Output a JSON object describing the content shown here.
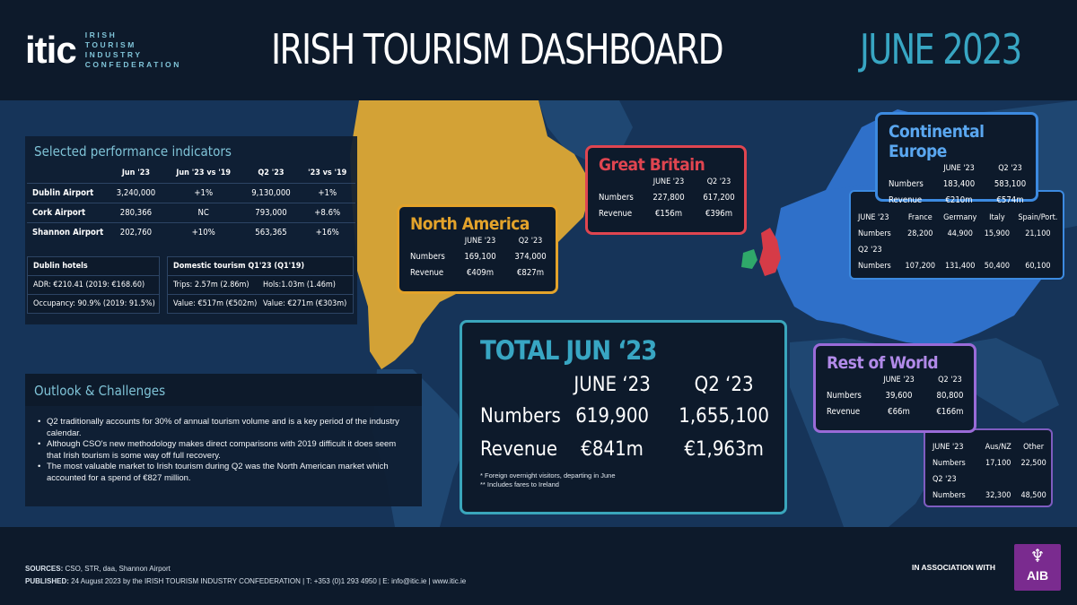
{
  "header": {
    "logo_mark": "itic",
    "logo_lines": [
      "IRISH",
      "TOURISM",
      "INDUSTRY",
      "CONFEDERATION"
    ],
    "title": "IRISH TOURISM DASHBOARD",
    "period": "JUNE 2023"
  },
  "performance": {
    "title": "Selected performance indicators",
    "columns": [
      "",
      "Jun '23",
      "Jun '23 vs '19",
      "Q2 '23",
      "'23 vs '19"
    ],
    "rows": [
      [
        "Dublin Airport",
        "3,240,000",
        "+1%",
        "9,130,000",
        "+1%"
      ],
      [
        "Cork Airport",
        "280,366",
        "NC",
        "793,000",
        "+8.6%"
      ],
      [
        "Shannon Airport",
        "202,760",
        "+10%",
        "563,365",
        "+16%"
      ]
    ],
    "hotels": {
      "title": "Dublin hotels",
      "adr": "ADR: €210.41  (2019: €168.60)",
      "occupancy": "Occupancy: 90.9%  (2019: 91.5%)"
    },
    "domestic": {
      "title": "Domestic tourism Q1'23 (Q1'19)",
      "trips": "Trips:  2.57m (2.86m)",
      "hols": "Hols:1.03m (1.46m)",
      "value_trips": "Value: €517m (€502m)",
      "value_hols": "Value: €271m (€303m)"
    }
  },
  "outlook": {
    "title": "Outlook & Challenges",
    "bullets": [
      "Q2 traditionally accounts for 30% of annual tourism volume and is a key period of the industry calendar.",
      "Although CSO's new methodology makes direct comparisons with 2019 difficult it does seem that Irish tourism is some way off full recovery.",
      "The most valuable market to Irish tourism during Q2 was the North American market which accounted for a spend of €827 million."
    ]
  },
  "regions": {
    "north_america": {
      "title": "North America",
      "cols": [
        "JUNE '23",
        "Q2 '23"
      ],
      "numbers": [
        "169,100",
        "374,000"
      ],
      "revenue": [
        "€409m",
        "€827m"
      ],
      "color": "#e3a32b"
    },
    "great_britain": {
      "title": "Great Britain",
      "cols": [
        "JUNE '23",
        "Q2 '23"
      ],
      "numbers": [
        "227,800",
        "617,200"
      ],
      "revenue": [
        "€156m",
        "€396m"
      ],
      "color": "#e04550"
    },
    "continental_europe": {
      "title": "Continental Europe",
      "cols": [
        "JUNE '23",
        "Q2 '23"
      ],
      "numbers": [
        "183,400",
        "583,100"
      ],
      "revenue": [
        "€210m",
        "€574m"
      ],
      "color": "#3c8ae0",
      "detail": {
        "period1": "JUNE '23",
        "countries": [
          "France",
          "Germany",
          "Italy",
          "Spain/Port."
        ],
        "june": [
          "28,200",
          "44,900",
          "15,900",
          "21,100"
        ],
        "period2": "Q2 '23",
        "q2": [
          "107,200",
          "131,400",
          "50,400",
          "60,100"
        ]
      }
    },
    "rest_of_world": {
      "title": "Rest of World",
      "cols": [
        "JUNE '23",
        "Q2 '23"
      ],
      "numbers": [
        "39,600",
        "80,800"
      ],
      "revenue": [
        "€66m",
        "€166m"
      ],
      "color": "#9a6bd8",
      "detail": {
        "period1": "JUNE '23",
        "countries": [
          "Aus/NZ",
          "Other"
        ],
        "june": [
          "17,100",
          "22,500"
        ],
        "period2": "Q2 '23",
        "q2": [
          "32,300",
          "48,500"
        ]
      }
    }
  },
  "labels": {
    "numbers": "Numbers",
    "revenue": "Revenue"
  },
  "total": {
    "title": "TOTAL JUN ‘23",
    "cols": [
      "JUNE ‘23",
      "Q2 ‘23"
    ],
    "numbers": [
      "619,900",
      "1,655,100"
    ],
    "revenue": [
      "€841m",
      "€1,963m"
    ],
    "note1": "*  Foreign overnight visitors, departing in June",
    "note2": "** Includes fares to Ireland"
  },
  "footer": {
    "sources_label": "SOURCES:",
    "sources": " CSO, STR, daa, Shannon Airport",
    "published_label": "PUBLISHED:",
    "published": " 24 August 2023 by the IRISH TOURISM INDUSTRY CONFEDERATION  |  T: +353 (0)1 293 4950  |  E: info@itic.ie  |  www.itic.ie",
    "assoc": "IN ASSOCIATION WITH",
    "sponsor": "AIB"
  }
}
